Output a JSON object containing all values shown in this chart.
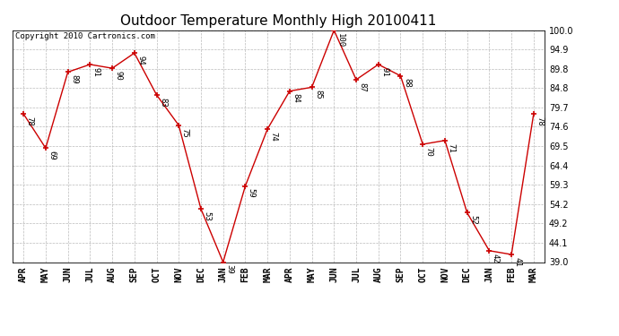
{
  "title": "Outdoor Temperature Monthly High 20100411",
  "copyright_text": "Copyright 2010 Cartronics.com",
  "months": [
    "APR",
    "MAY",
    "JUN",
    "JUL",
    "AUG",
    "SEP",
    "OCT",
    "NOV",
    "DEC",
    "JAN",
    "FEB",
    "MAR",
    "APR",
    "MAY",
    "JUN",
    "JUL",
    "AUG",
    "SEP",
    "OCT",
    "NOV",
    "DEC",
    "JAN",
    "FEB",
    "MAR"
  ],
  "values": [
    78,
    69,
    89,
    91,
    90,
    94,
    83,
    75,
    53,
    39,
    59,
    74,
    84,
    85,
    100,
    87,
    91,
    88,
    70,
    71,
    52,
    42,
    41,
    78
  ],
  "line_color": "#cc0000",
  "marker_color": "#cc0000",
  "background_color": "#ffffff",
  "grid_color": "#bbbbbb",
  "ylim_min": 39.0,
  "ylim_max": 100.0,
  "yticks": [
    39.0,
    44.1,
    49.2,
    54.2,
    59.3,
    64.4,
    69.5,
    74.6,
    79.7,
    84.8,
    89.8,
    94.9,
    100.0
  ],
  "title_fontsize": 11,
  "label_fontsize": 6.5,
  "tick_fontsize": 7,
  "copyright_fontsize": 6.5
}
